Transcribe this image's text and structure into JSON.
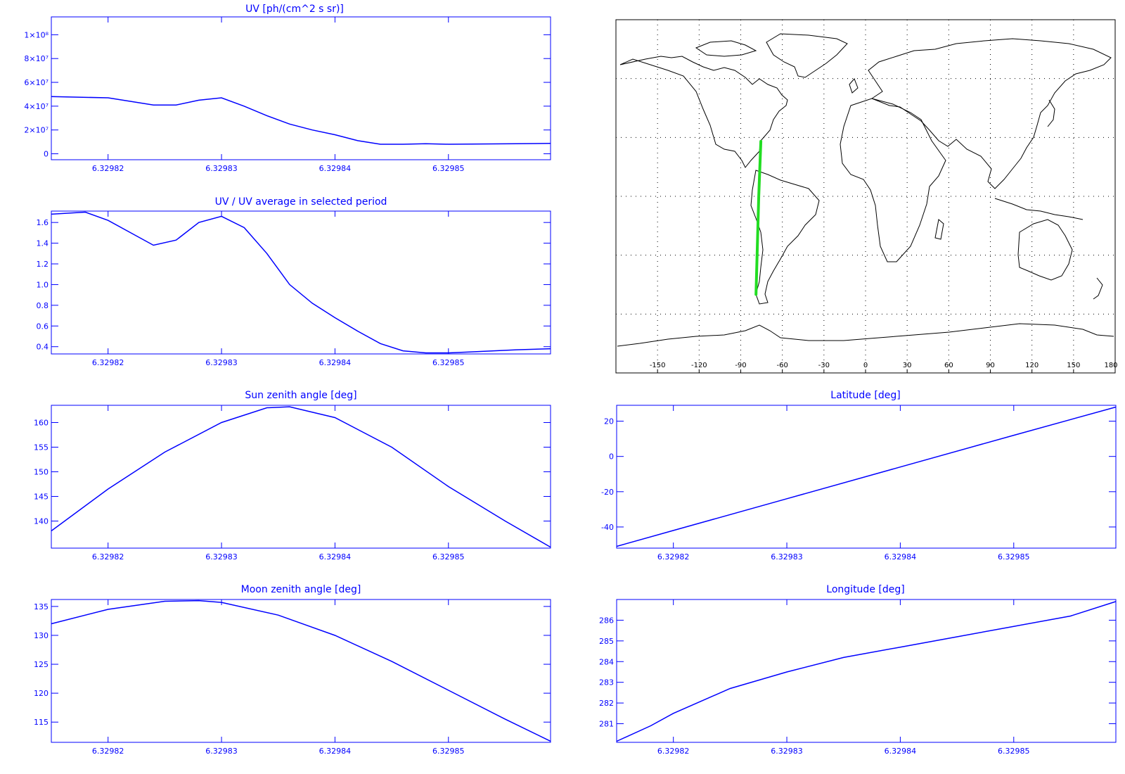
{
  "colors": {
    "axis": "#0000ff",
    "line": "#0000ff",
    "track": "#22dd22",
    "map": "#000000"
  },
  "chart_data": [
    {
      "id": "uv",
      "type": "line",
      "title": "UV [ph/(cm^2 s sr)]",
      "xlim": [
        6.329815,
        6.329859
      ],
      "ylim": [
        -5000000,
        115000000
      ],
      "xticks": [
        "6.32982",
        "6.32983",
        "6.32984",
        "6.32985"
      ],
      "xtick_values": [
        6.32982,
        6.32983,
        6.32984,
        6.32985
      ],
      "yticks": [
        "0",
        "2×10⁷",
        "4×10⁷",
        "6×10⁷",
        "8×10⁷",
        "1×10⁸"
      ],
      "ytick_values": [
        0,
        20000000,
        40000000,
        60000000,
        80000000,
        100000000
      ],
      "series": [
        {
          "x": [
            6.329815,
            6.32982,
            6.329822,
            6.329824,
            6.329826,
            6.329828,
            6.32983,
            6.329832,
            6.329834,
            6.329836,
            6.329838,
            6.32984,
            6.329842,
            6.329844,
            6.329846,
            6.329848,
            6.32985,
            6.329852,
            6.329854,
            6.329856,
            6.329859
          ],
          "y": [
            48000000,
            47000000,
            44000000,
            41000000,
            41000000,
            45000000,
            47000000,
            40000000,
            32000000,
            25000000,
            20000000,
            16000000,
            11000000,
            8000000,
            8000000,
            8500000,
            8000000,
            8200000,
            8300000,
            8500000,
            8700000
          ]
        }
      ]
    },
    {
      "id": "ratio",
      "type": "line",
      "title": "UV / UV average in selected period",
      "xlim": [
        6.329815,
        6.329859
      ],
      "ylim": [
        0.33,
        1.71
      ],
      "xticks": [
        "6.32982",
        "6.32983",
        "6.32984",
        "6.32985"
      ],
      "xtick_values": [
        6.32982,
        6.32983,
        6.32984,
        6.32985
      ],
      "yticks": [
        "0.4",
        "0.6",
        "0.8",
        "1.0",
        "1.2",
        "1.4",
        "1.6"
      ],
      "ytick_values": [
        0.4,
        0.6,
        0.8,
        1.0,
        1.2,
        1.4,
        1.6
      ],
      "series": [
        {
          "x": [
            6.329815,
            6.329818,
            6.32982,
            6.329822,
            6.329824,
            6.329826,
            6.329828,
            6.32983,
            6.329832,
            6.329834,
            6.329836,
            6.329838,
            6.32984,
            6.329842,
            6.329844,
            6.329846,
            6.329848,
            6.32985,
            6.329852,
            6.329854,
            6.329856,
            6.329859
          ],
          "y": [
            1.68,
            1.7,
            1.62,
            1.5,
            1.38,
            1.43,
            1.6,
            1.66,
            1.55,
            1.3,
            1.0,
            0.82,
            0.68,
            0.55,
            0.43,
            0.36,
            0.34,
            0.34,
            0.35,
            0.36,
            0.37,
            0.38
          ]
        }
      ]
    },
    {
      "id": "sun",
      "type": "line",
      "title": "Sun zenith angle [deg]",
      "xlim": [
        6.329815,
        6.329859
      ],
      "ylim": [
        134.5,
        163.5
      ],
      "xticks": [
        "6.32982",
        "6.32983",
        "6.32984",
        "6.32985"
      ],
      "xtick_values": [
        6.32982,
        6.32983,
        6.32984,
        6.32985
      ],
      "yticks": [
        "140",
        "145",
        "150",
        "155",
        "160"
      ],
      "ytick_values": [
        140,
        145,
        150,
        155,
        160
      ],
      "series": [
        {
          "x": [
            6.329815,
            6.32982,
            6.329825,
            6.32983,
            6.329834,
            6.329836,
            6.32984,
            6.329845,
            6.32985,
            6.329855,
            6.329859
          ],
          "y": [
            138,
            146.5,
            154,
            160,
            163,
            163.2,
            161,
            155,
            147,
            140,
            134.7
          ]
        }
      ]
    },
    {
      "id": "lat",
      "type": "line",
      "title": "Latitude [deg]",
      "xlim": [
        6.329815,
        6.329859
      ],
      "ylim": [
        -52,
        29
      ],
      "xticks": [
        "6.32982",
        "6.32983",
        "6.32984",
        "6.32985"
      ],
      "xtick_values": [
        6.32982,
        6.32983,
        6.32984,
        6.32985
      ],
      "yticks": [
        "-40",
        "-20",
        "0",
        "20"
      ],
      "ytick_values": [
        -40,
        -20,
        0,
        20
      ],
      "series": [
        {
          "x": [
            6.329815,
            6.32982,
            6.32983,
            6.32984,
            6.32985,
            6.329859
          ],
          "y": [
            -51,
            -42,
            -24,
            -6,
            12,
            28
          ]
        }
      ]
    },
    {
      "id": "moon",
      "type": "line",
      "title": "Moon zenith angle [deg]",
      "xlim": [
        6.329815,
        6.329859
      ],
      "ylim": [
        111.5,
        136.2
      ],
      "xticks": [
        "6.32982",
        "6.32983",
        "6.32984",
        "6.32985"
      ],
      "xtick_values": [
        6.32982,
        6.32983,
        6.32984,
        6.32985
      ],
      "yticks": [
        "115",
        "120",
        "125",
        "130",
        "135"
      ],
      "ytick_values": [
        115,
        120,
        125,
        130,
        135
      ],
      "series": [
        {
          "x": [
            6.329815,
            6.32982,
            6.329825,
            6.329828,
            6.32983,
            6.329835,
            6.32984,
            6.329845,
            6.32985,
            6.329855,
            6.329859
          ],
          "y": [
            132,
            134.5,
            135.9,
            136,
            135.7,
            133.5,
            130,
            125.5,
            120.5,
            115.5,
            111.7
          ]
        }
      ]
    },
    {
      "id": "lon",
      "type": "line",
      "title": "Longitude [deg]",
      "xlim": [
        6.329815,
        6.329859
      ],
      "ylim": [
        280.1,
        287.0
      ],
      "xticks": [
        "6.32982",
        "6.32983",
        "6.32984",
        "6.32985"
      ],
      "xtick_values": [
        6.32982,
        6.32983,
        6.32984,
        6.32985
      ],
      "yticks": [
        "281",
        "282",
        "283",
        "284",
        "285",
        "286"
      ],
      "ytick_values": [
        281,
        282,
        283,
        284,
        285,
        286
      ],
      "series": [
        {
          "x": [
            6.329815,
            6.329818,
            6.32982,
            6.329825,
            6.32983,
            6.329835,
            6.32984,
            6.329845,
            6.32985,
            6.329855,
            6.329859
          ],
          "y": [
            280.15,
            280.9,
            281.5,
            282.7,
            283.5,
            284.2,
            284.7,
            285.2,
            285.7,
            286.2,
            286.9
          ]
        }
      ]
    }
  ],
  "map": {
    "type": "map",
    "xticks": [
      "-150",
      "-120",
      "-90",
      "-60",
      "-30",
      "0",
      "30",
      "60",
      "90",
      "120",
      "150",
      "180"
    ],
    "xtick_values": [
      -150,
      -120,
      -90,
      -60,
      -30,
      0,
      30,
      60,
      90,
      120,
      150,
      180
    ],
    "grid_lon": [
      -150,
      -120,
      -90,
      -60,
      -30,
      0,
      30,
      60,
      90,
      120,
      150
    ],
    "grid_lat": [
      60,
      30,
      0,
      -30,
      -60
    ],
    "track": {
      "lon": [
        -79,
        -77,
        -75.5
      ],
      "lat": [
        -50,
        0,
        28
      ]
    }
  }
}
